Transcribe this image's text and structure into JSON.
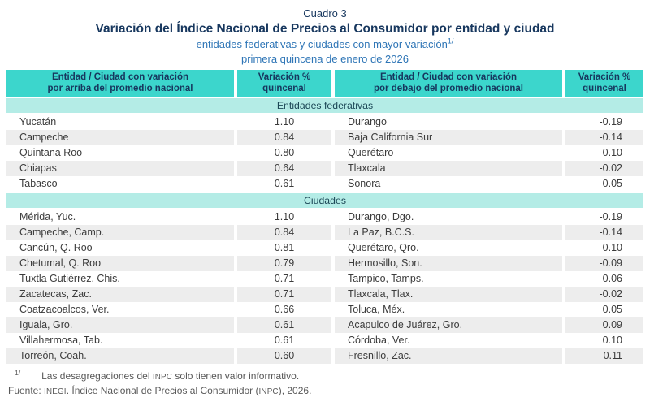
{
  "titles": {
    "cuadro": "Cuadro 3",
    "main": "Variación del Índice Nacional de Precios al Consumidor por entidad y ciudad",
    "subtitle1": "entidades federativas y ciudades con mayor variación",
    "subtitle1_sup": "1/",
    "subtitle2": "primera quincena de enero de 2026"
  },
  "table": {
    "headers": [
      {
        "line1": "Entidad / Ciudad con variación",
        "line2": "por arriba del promedio nacional"
      },
      {
        "line1": "Variación %",
        "line2": "quincenal"
      },
      {
        "line1": "Entidad / Ciudad con variación",
        "line2": "por debajo del promedio nacional"
      },
      {
        "line1": "Variación %",
        "line2": "quincenal"
      }
    ],
    "sections": [
      {
        "label": "Entidades federativas",
        "rows": [
          {
            "left": "Yucatán",
            "left_value": "1.10",
            "right": "Durango",
            "right_value": "-0.19"
          },
          {
            "left": "Campeche",
            "left_value": "0.84",
            "right": "Baja California Sur",
            "right_value": "-0.14"
          },
          {
            "left": "Quintana Roo",
            "left_value": "0.80",
            "right": "Querétaro",
            "right_value": "-0.10"
          },
          {
            "left": "Chiapas",
            "left_value": "0.64",
            "right": "Tlaxcala",
            "right_value": "-0.02"
          },
          {
            "left": "Tabasco",
            "left_value": "0.61",
            "right": "Sonora",
            "right_value": "0.05"
          }
        ]
      },
      {
        "label": "Ciudades",
        "rows": [
          {
            "left": "Mérida, Yuc.",
            "left_value": "1.10",
            "right": "Durango, Dgo.",
            "right_value": "-0.19"
          },
          {
            "left": "Campeche, Camp.",
            "left_value": "0.84",
            "right": "La Paz, B.C.S.",
            "right_value": "-0.14"
          },
          {
            "left": "Cancún, Q. Roo",
            "left_value": "0.81",
            "right": "Querétaro, Qro.",
            "right_value": "-0.10"
          },
          {
            "left": "Chetumal, Q. Roo",
            "left_value": "0.79",
            "right": "Hermosillo, Son.",
            "right_value": "-0.09"
          },
          {
            "left": "Tuxtla Gutiérrez, Chis.",
            "left_value": "0.71",
            "right": "Tampico, Tamps.",
            "right_value": "-0.06"
          },
          {
            "left": "Zacatecas, Zac.",
            "left_value": "0.71",
            "right": "Tlaxcala, Tlax.",
            "right_value": "-0.02"
          },
          {
            "left": "Coatzacoalcos, Ver.",
            "left_value": "0.66",
            "right": "Toluca, Méx.",
            "right_value": "0.05"
          },
          {
            "left": "Iguala, Gro.",
            "left_value": "0.61",
            "right": "Acapulco de Juárez, Gro.",
            "right_value": "0.09"
          },
          {
            "left": "Villahermosa, Tab.",
            "left_value": "0.61",
            "right": "Córdoba, Ver.",
            "right_value": "0.10"
          },
          {
            "left": "Torreón, Coah.",
            "left_value": "0.60",
            "right": "Fresnillo, Zac.",
            "right_value": "0.11"
          }
        ]
      }
    ]
  },
  "footnotes": {
    "marker": "1/",
    "note_parts": [
      "Las desagregaciones del ",
      "INPC",
      " solo tienen valor informativo."
    ],
    "source_parts": [
      "Fuente: ",
      "INEGI",
      ". Índice Nacional de Precios al Consumidor (",
      "INPC",
      "), 2026."
    ]
  },
  "colors": {
    "header_teal": "#3CD6CC",
    "section_band": "#B4ECE6",
    "row_stripe": "#EDEDED",
    "title_navy": "#17375E",
    "subtitle_blue": "#2E75B6",
    "section_text": "#1C4756",
    "text_dark": "#3C3C3C",
    "footnote_gray": "#595959"
  }
}
